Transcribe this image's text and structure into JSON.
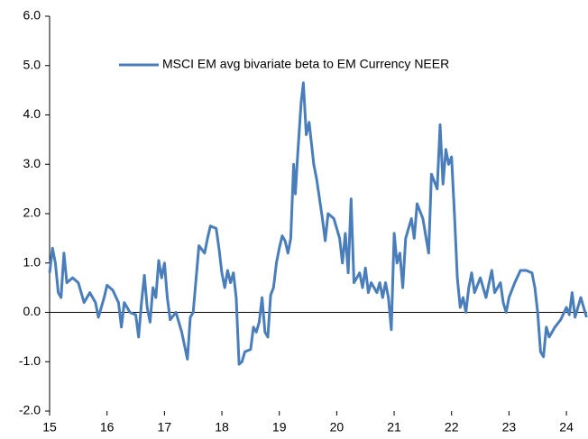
{
  "chart_data": {
    "type": "line",
    "series": [
      {
        "name": "MSCI EM avg bivariate beta to EM Currency NEER",
        "color": "#4a7ebb",
        "x": [
          15.0,
          15.05,
          15.1,
          15.15,
          15.2,
          15.25,
          15.3,
          15.4,
          15.5,
          15.6,
          15.7,
          15.8,
          15.85,
          15.95,
          16.0,
          16.1,
          16.2,
          16.25,
          16.3,
          16.4,
          16.5,
          16.55,
          16.6,
          16.65,
          16.7,
          16.75,
          16.8,
          16.85,
          16.9,
          16.95,
          17.0,
          17.05,
          17.1,
          17.2,
          17.3,
          17.4,
          17.45,
          17.5,
          17.6,
          17.7,
          17.75,
          17.8,
          17.9,
          17.95,
          18.0,
          18.05,
          18.1,
          18.15,
          18.2,
          18.25,
          18.3,
          18.35,
          18.4,
          18.5,
          18.55,
          18.6,
          18.65,
          18.7,
          18.75,
          18.8,
          18.85,
          18.9,
          18.95,
          19.0,
          19.05,
          19.1,
          19.15,
          19.2,
          19.25,
          19.28,
          19.32,
          19.38,
          19.42,
          19.47,
          19.52,
          19.6,
          19.65,
          19.75,
          19.8,
          19.85,
          19.95,
          20.0,
          20.05,
          20.1,
          20.15,
          20.2,
          20.25,
          20.3,
          20.4,
          20.45,
          20.5,
          20.55,
          20.6,
          20.7,
          20.75,
          20.8,
          20.85,
          20.9,
          20.95,
          21.0,
          21.05,
          21.1,
          21.15,
          21.2,
          21.3,
          21.35,
          21.4,
          21.5,
          21.6,
          21.65,
          21.75,
          21.8,
          21.85,
          21.9,
          21.95,
          22.0,
          22.05,
          22.1,
          22.15,
          22.2,
          22.25,
          22.3,
          22.35,
          22.4,
          22.5,
          22.6,
          22.7,
          22.75,
          22.85,
          22.9,
          22.95,
          23.0,
          23.1,
          23.2,
          23.3,
          23.4,
          23.45,
          23.5,
          23.55,
          23.6,
          23.65,
          23.7,
          23.8,
          23.9,
          24.0,
          24.05,
          24.1,
          24.15,
          24.2,
          24.25,
          24.3,
          24.35
        ],
        "values": [
          0.8,
          1.3,
          1.0,
          0.4,
          0.3,
          1.2,
          0.6,
          0.7,
          0.6,
          0.2,
          0.4,
          0.2,
          -0.1,
          0.3,
          0.55,
          0.45,
          0.2,
          -0.3,
          0.2,
          0.0,
          -0.05,
          -0.5,
          0.2,
          0.75,
          0.1,
          -0.2,
          0.5,
          0.3,
          1.05,
          0.7,
          1.0,
          0.3,
          -0.15,
          0.0,
          -0.4,
          -0.95,
          -0.1,
          0.0,
          1.35,
          1.2,
          1.5,
          1.75,
          1.7,
          1.3,
          0.8,
          0.5,
          0.85,
          0.6,
          0.8,
          0.3,
          -1.05,
          -1.0,
          -0.8,
          -0.75,
          -0.3,
          -0.4,
          -0.2,
          0.3,
          -0.4,
          -0.5,
          0.35,
          0.5,
          1.0,
          1.3,
          1.55,
          1.45,
          1.2,
          1.5,
          3.0,
          2.4,
          3.2,
          4.25,
          4.65,
          3.6,
          3.85,
          3.0,
          2.7,
          1.9,
          1.45,
          2.0,
          1.9,
          1.7,
          1.5,
          1.0,
          1.6,
          0.8,
          2.3,
          0.6,
          0.8,
          0.5,
          0.9,
          0.4,
          0.6,
          0.4,
          0.6,
          0.3,
          0.6,
          0.3,
          -0.35,
          1.6,
          1.0,
          1.2,
          0.5,
          1.5,
          1.9,
          1.5,
          2.2,
          1.9,
          1.2,
          2.8,
          2.5,
          3.8,
          2.6,
          3.3,
          3.0,
          3.15,
          2.0,
          0.7,
          0.1,
          0.3,
          0.0,
          0.5,
          0.8,
          0.4,
          0.7,
          0.3,
          0.85,
          0.4,
          0.6,
          0.2,
          0.0,
          0.3,
          0.6,
          0.85,
          0.85,
          0.8,
          0.5,
          0.0,
          -0.8,
          -0.9,
          -0.3,
          -0.5,
          -0.3,
          -0.15,
          0.1,
          -0.05,
          0.4,
          -0.1,
          0.1,
          0.3,
          0.1,
          -0.1
        ]
      }
    ],
    "xlim": [
      15,
      24.36
    ],
    "xticks": [
      15,
      16,
      17,
      18,
      19,
      20,
      21,
      22,
      23,
      24
    ],
    "ylim": [
      -2,
      6
    ],
    "yticks": [
      {
        "value": -2,
        "label": "-2.0"
      },
      {
        "value": -1,
        "label": "-1.0"
      },
      {
        "value": 0,
        "label": "0.0"
      },
      {
        "value": 1,
        "label": "1.0"
      },
      {
        "value": 2,
        "label": "2.0"
      },
      {
        "value": 3,
        "label": "3.0"
      },
      {
        "value": 4,
        "label": "4.0"
      },
      {
        "value": 5,
        "label": "5.0"
      },
      {
        "value": 6,
        "label": "6.0"
      }
    ],
    "legend": "top"
  }
}
